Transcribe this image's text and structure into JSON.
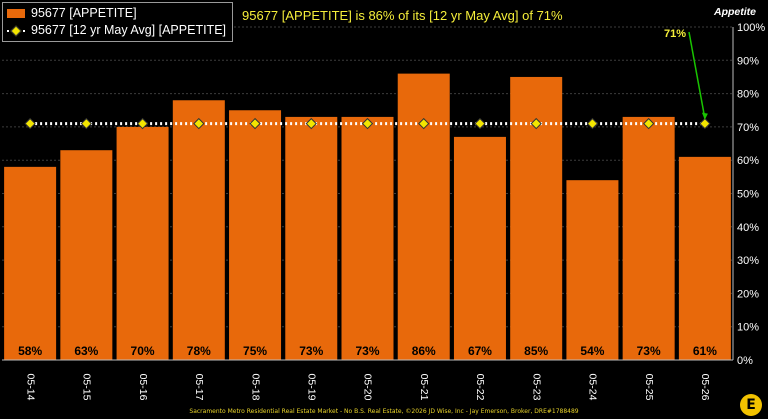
{
  "chart_data": {
    "type": "bar",
    "title": "95677 [APPETITE] is 86% of its [12 yr May Avg] of 71%",
    "ylabel": "Appetite",
    "xlabel": "",
    "categories": [
      "05-14",
      "05-15",
      "05-16",
      "05-17",
      "05-18",
      "05-19",
      "05-20",
      "05-21",
      "05-22",
      "05-23",
      "05-24",
      "05-25",
      "05-26"
    ],
    "series": [
      {
        "name": "95677 [APPETITE]",
        "type": "bar",
        "values": [
          58,
          63,
          70,
          78,
          75,
          73,
          73,
          86,
          67,
          85,
          54,
          73,
          61
        ],
        "labels": [
          "58%",
          "63%",
          "70%",
          "78%",
          "75%",
          "73%",
          "73%",
          "86%",
          "67%",
          "85%",
          "54%",
          "73%",
          "61%"
        ]
      },
      {
        "name": "95677 [12 yr May Avg] [APPETITE]",
        "type": "line",
        "values": [
          71,
          71,
          71,
          71,
          71,
          71,
          71,
          71,
          71,
          71,
          71,
          71,
          71
        ]
      }
    ],
    "ylim": [
      0,
      100
    ],
    "yticks": [
      "0%",
      "10%",
      "20%",
      "30%",
      "40%",
      "50%",
      "60%",
      "70%",
      "80%",
      "90%",
      "100%"
    ],
    "annotation": "71%",
    "grid": true,
    "legend_position": "top-left",
    "colors": {
      "bar": "#e8690b",
      "avg_line": "#ffffff",
      "avg_marker": "#f3e600",
      "title": "#f5ee3a",
      "annotation": "#f5ee3a",
      "annotation_arrow": "#19c400",
      "background": "#000000"
    }
  },
  "footer": "Sacramento Metro Residential Real Estate Market - No B.S. Real Estate, ©2026 JD Wise, Inc - Jay Emerson, Broker, DRE#1788489",
  "logo_mark": "E"
}
